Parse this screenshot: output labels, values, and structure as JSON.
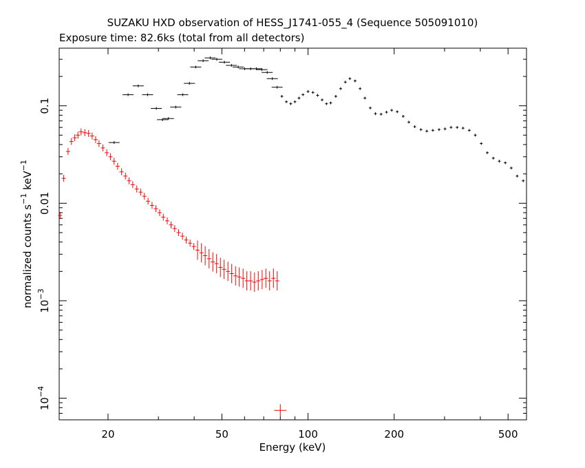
{
  "chart_data": {
    "type": "scatter",
    "title": "SUZAKU HXD observation of HESS_J1741-055_4 (Sequence 505091010)",
    "subtitle": "Exposure time: 82.6ks (total from all detectors)",
    "xlabel": "Energy (keV)",
    "ylabel": {
      "main": "normalized counts s",
      "exp1": "−1",
      "mid": " keV",
      "exp2": "−1"
    },
    "xscale": "log",
    "yscale": "log",
    "xlim": [
      13.5,
      580
    ],
    "ylim": [
      6e-05,
      0.39
    ],
    "x_ticks": [
      {
        "value": 20,
        "label": "20"
      },
      {
        "value": 50,
        "label": "50"
      },
      {
        "value": 100,
        "label": "100"
      },
      {
        "value": 200,
        "label": "200"
      },
      {
        "value": 500,
        "label": "500"
      }
    ],
    "y_ticks": [
      {
        "value": 0.1,
        "label": "0.1",
        "base": "",
        "exp": ""
      },
      {
        "value": 0.01,
        "label": "0.01",
        "base": "",
        "exp": ""
      },
      {
        "value": 0.001,
        "label": "",
        "base": "10",
        "exp": "−3"
      },
      {
        "value": 0.0001,
        "label": "",
        "base": "10",
        "exp": "−4"
      }
    ],
    "colors": {
      "pin": "#ff0000",
      "gso": "#000000",
      "axes": "#000000"
    },
    "series": [
      {
        "color": "#ff0000",
        "points": [
          [
            13.6,
            0.0075
          ],
          [
            14.0,
            0.018
          ],
          [
            14.5,
            0.034
          ],
          [
            14.9,
            0.043
          ],
          [
            15.3,
            0.047
          ],
          [
            15.7,
            0.05
          ],
          [
            16.1,
            0.054
          ],
          [
            16.6,
            0.053
          ],
          [
            17.1,
            0.052
          ],
          [
            17.6,
            0.049
          ],
          [
            18.1,
            0.045
          ],
          [
            18.6,
            0.041
          ],
          [
            19.2,
            0.037
          ],
          [
            19.8,
            0.033
          ],
          [
            20.4,
            0.03
          ],
          [
            21.0,
            0.027
          ],
          [
            21.6,
            0.024
          ],
          [
            22.3,
            0.021
          ],
          [
            23.0,
            0.019
          ],
          [
            23.7,
            0.017
          ],
          [
            24.4,
            0.0155
          ],
          [
            25.2,
            0.014
          ],
          [
            26.0,
            0.013
          ],
          [
            26.8,
            0.0118
          ],
          [
            27.6,
            0.0105
          ],
          [
            28.5,
            0.0095
          ],
          [
            29.4,
            0.0088
          ],
          [
            30.3,
            0.008
          ],
          [
            31.2,
            0.0072
          ],
          [
            32.2,
            0.0066
          ],
          [
            33.2,
            0.006
          ],
          [
            34.2,
            0.0055
          ],
          [
            35.3,
            0.005
          ],
          [
            36.4,
            0.0046
          ],
          [
            37.5,
            0.0042
          ],
          [
            38.7,
            0.0039
          ],
          [
            39.9,
            0.0036
          ],
          [
            41.1,
            0.0033
          ],
          [
            42.4,
            0.0031
          ],
          [
            43.7,
            0.0029
          ],
          [
            45.1,
            0.0027
          ],
          [
            46.5,
            0.0025
          ],
          [
            47.9,
            0.0024
          ],
          [
            49.4,
            0.0022
          ],
          [
            50.9,
            0.0021
          ],
          [
            52.5,
            0.002
          ],
          [
            54.1,
            0.0019
          ],
          [
            55.8,
            0.0018
          ],
          [
            57.5,
            0.00175
          ],
          [
            59.3,
            0.0017
          ],
          [
            61.1,
            0.0016
          ],
          [
            63.0,
            0.0016
          ],
          [
            65.0,
            0.00155
          ],
          [
            67.0,
            0.0016
          ],
          [
            69.1,
            0.00165
          ],
          [
            71.2,
            0.0017
          ],
          [
            73.4,
            0.0016
          ],
          [
            75.7,
            0.0017
          ],
          [
            78.0,
            0.0016
          ],
          [
            80.0,
            7.5e-05
          ]
        ]
      },
      {
        "color": "#000000",
        "points": [
          [
            21.0,
            0.042
          ],
          [
            23.5,
            0.13
          ],
          [
            25.5,
            0.16
          ],
          [
            27.5,
            0.13
          ],
          [
            29.5,
            0.094
          ],
          [
            31.0,
            0.072
          ],
          [
            32.5,
            0.074
          ],
          [
            34.5,
            0.097
          ],
          [
            36.5,
            0.13
          ],
          [
            38.5,
            0.17
          ],
          [
            40.5,
            0.25
          ],
          [
            43.0,
            0.29
          ],
          [
            45.5,
            0.31
          ],
          [
            48.0,
            0.3
          ],
          [
            51.0,
            0.28
          ],
          [
            54.0,
            0.26
          ],
          [
            57.0,
            0.25
          ],
          [
            60.0,
            0.24
          ],
          [
            63.0,
            0.24
          ],
          [
            66.0,
            0.24
          ],
          [
            69.0,
            0.235
          ],
          [
            72.0,
            0.22
          ],
          [
            75.0,
            0.19
          ],
          [
            78.0,
            0.155
          ],
          [
            81.0,
            0.125
          ],
          [
            84.0,
            0.11
          ],
          [
            87.0,
            0.105
          ],
          [
            90.0,
            0.11
          ],
          [
            93.0,
            0.12
          ],
          [
            96.0,
            0.13
          ],
          [
            100.0,
            0.14
          ],
          [
            104.0,
            0.137
          ],
          [
            108.0,
            0.128
          ],
          [
            112.0,
            0.115
          ],
          [
            116.0,
            0.105
          ],
          [
            120.0,
            0.107
          ],
          [
            125.0,
            0.125
          ],
          [
            130.0,
            0.15
          ],
          [
            135.0,
            0.175
          ],
          [
            140.0,
            0.19
          ],
          [
            146.0,
            0.18
          ],
          [
            152.0,
            0.15
          ],
          [
            158.0,
            0.12
          ],
          [
            165.0,
            0.095
          ],
          [
            172.0,
            0.083
          ],
          [
            180.0,
            0.082
          ],
          [
            188.0,
            0.086
          ],
          [
            196.0,
            0.09
          ],
          [
            205.0,
            0.087
          ],
          [
            215.0,
            0.078
          ],
          [
            225.0,
            0.068
          ],
          [
            236.0,
            0.061
          ],
          [
            248.0,
            0.057
          ],
          [
            260.0,
            0.055
          ],
          [
            273.0,
            0.056
          ],
          [
            287.0,
            0.057
          ],
          [
            301.0,
            0.058
          ],
          [
            316.0,
            0.06
          ],
          [
            332.0,
            0.06
          ],
          [
            348.0,
            0.059
          ],
          [
            366.0,
            0.056
          ],
          [
            384.0,
            0.05
          ],
          [
            403.0,
            0.041
          ],
          [
            423.0,
            0.033
          ],
          [
            444.0,
            0.029
          ],
          [
            466.0,
            0.027
          ],
          [
            489.0,
            0.026
          ],
          [
            513.0,
            0.023
          ],
          [
            538.0,
            0.019
          ],
          [
            565.0,
            0.017
          ]
        ]
      }
    ]
  }
}
